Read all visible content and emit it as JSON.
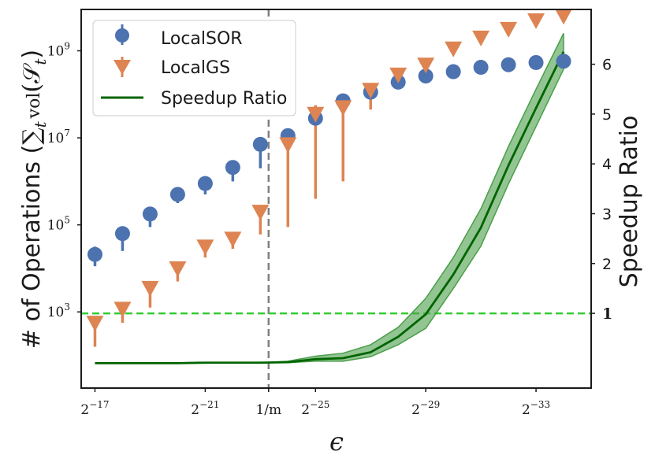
{
  "chart_data": {
    "type": "scatter",
    "xlabel": "ϵ",
    "ylabel_left_prefix": "# of Operations (",
    "ylabel_left_sum": "∑",
    "ylabel_left_sub_t": "t",
    "ylabel_left_vol": "vol",
    "ylabel_left_S": "(𝒮",
    "ylabel_left_close": ")",
    "ylabel_right": "Speedup Ratio",
    "x_axis": {
      "note": "log2 epsilon exponent, increasing to the right means smaller epsilon",
      "range": [
        -16.5,
        -35.0
      ],
      "ticks": [
        {
          "x": -17,
          "label": "2",
          "exp": "−17"
        },
        {
          "x": -21,
          "label": "2",
          "exp": "−21"
        },
        {
          "x": -23.3,
          "label": "1/m",
          "exp": ""
        },
        {
          "x": -25,
          "label": "2",
          "exp": "−25"
        },
        {
          "x": -29,
          "label": "2",
          "exp": "−29"
        },
        {
          "x": -33,
          "label": "2",
          "exp": "−33"
        }
      ]
    },
    "y_left": {
      "scale": "log10",
      "range": [
        1.25,
        9.95
      ],
      "ticks": [
        {
          "y": 3,
          "label": "10",
          "exp": "3"
        },
        {
          "y": 5,
          "label": "10",
          "exp": "5"
        },
        {
          "y": 7,
          "label": "10",
          "exp": "7"
        },
        {
          "y": 9,
          "label": "10",
          "exp": "9"
        }
      ]
    },
    "y_right": {
      "range": [
        -0.5,
        7.1
      ],
      "ticks": [
        {
          "y": 1,
          "label": "1",
          "bold": true
        },
        {
          "y": 2,
          "label": "2"
        },
        {
          "y": 3,
          "label": "3"
        },
        {
          "y": 4,
          "label": "4"
        },
        {
          "y": 5,
          "label": "5"
        },
        {
          "y": 6,
          "label": "6"
        }
      ]
    },
    "vline_x": -23.3,
    "hline_speedup": 1,
    "series": [
      {
        "name": "LocalSOR",
        "color": "#4c72b0",
        "marker": "circle",
        "points": [
          {
            "x": -17,
            "y": 4.32,
            "lo": 4.05,
            "hi": 4.5
          },
          {
            "x": -18,
            "y": 4.8,
            "lo": 4.4,
            "hi": 4.95
          },
          {
            "x": -19,
            "y": 5.25,
            "lo": 4.95,
            "hi": 5.35
          },
          {
            "x": -20,
            "y": 5.7,
            "lo": 5.5,
            "hi": 5.8
          },
          {
            "x": -21,
            "y": 5.95,
            "lo": 5.7,
            "hi": 6.05
          },
          {
            "x": -22,
            "y": 6.32,
            "lo": 6.0,
            "hi": 6.4
          },
          {
            "x": -23,
            "y": 6.85,
            "lo": 6.3,
            "hi": 6.95
          },
          {
            "x": -24,
            "y": 7.05,
            "lo": 6.9,
            "hi": 7.15
          },
          {
            "x": -25,
            "y": 7.45,
            "lo": 7.3,
            "hi": 7.55
          },
          {
            "x": -26,
            "y": 7.85,
            "lo": 7.7,
            "hi": 7.92
          },
          {
            "x": -27,
            "y": 8.05,
            "lo": 7.95,
            "hi": 8.15
          },
          {
            "x": -28,
            "y": 8.28,
            "lo": 8.2,
            "hi": 8.35
          },
          {
            "x": -29,
            "y": 8.42,
            "lo": 8.38,
            "hi": 8.48
          },
          {
            "x": -30,
            "y": 8.52,
            "lo": 8.48,
            "hi": 8.56
          },
          {
            "x": -31,
            "y": 8.62,
            "lo": 8.58,
            "hi": 8.66
          },
          {
            "x": -32,
            "y": 8.68,
            "lo": 8.64,
            "hi": 8.72
          },
          {
            "x": -33,
            "y": 8.73,
            "lo": 8.69,
            "hi": 8.77
          },
          {
            "x": -34,
            "y": 8.76,
            "lo": 8.72,
            "hi": 8.8
          }
        ]
      },
      {
        "name": "LocalGS",
        "color": "#dd8452",
        "marker": "triangle-down",
        "points": [
          {
            "x": -17,
            "y": 2.75,
            "lo": 2.2,
            "hi": 2.85
          },
          {
            "x": -18,
            "y": 3.07,
            "lo": 2.75,
            "hi": 3.1
          },
          {
            "x": -19,
            "y": 3.55,
            "lo": 3.1,
            "hi": 3.6
          },
          {
            "x": -20,
            "y": 4.0,
            "lo": 3.7,
            "hi": 4.05
          },
          {
            "x": -21,
            "y": 4.5,
            "lo": 4.25,
            "hi": 4.55
          },
          {
            "x": -22,
            "y": 4.68,
            "lo": 4.45,
            "hi": 4.72
          },
          {
            "x": -23,
            "y": 5.3,
            "lo": 4.78,
            "hi": 5.35
          },
          {
            "x": -24,
            "y": 6.85,
            "lo": 4.95,
            "hi": 7.0
          },
          {
            "x": -25,
            "y": 7.55,
            "lo": 5.6,
            "hi": 7.75
          },
          {
            "x": -26,
            "y": 7.7,
            "lo": 6.0,
            "hi": 7.8
          },
          {
            "x": -27,
            "y": 8.1,
            "lo": 7.65,
            "hi": 8.15
          },
          {
            "x": -28,
            "y": 8.45,
            "lo": 8.35,
            "hi": 8.5
          },
          {
            "x": -29,
            "y": 8.68,
            "lo": 8.6,
            "hi": 8.72
          },
          {
            "x": -30,
            "y": 9.05,
            "lo": 9.0,
            "hi": 9.1
          },
          {
            "x": -31,
            "y": 9.3,
            "lo": 9.25,
            "hi": 9.35
          },
          {
            "x": -32,
            "y": 9.5,
            "lo": 9.45,
            "hi": 9.55
          },
          {
            "x": -33,
            "y": 9.7,
            "lo": 9.65,
            "hi": 9.75
          },
          {
            "x": -34,
            "y": 9.8,
            "lo": 9.75,
            "hi": 9.85
          }
        ]
      },
      {
        "name": "Speedup Ratio",
        "color": "#006400",
        "band_color": "#4a9e4a",
        "marker": "line",
        "axis": "right",
        "points": [
          {
            "x": -17,
            "y": 0.0,
            "lo": 0.0,
            "hi": 0.0
          },
          {
            "x": -18,
            "y": 0.0,
            "lo": 0.0,
            "hi": 0.0
          },
          {
            "x": -19,
            "y": 0.0,
            "lo": 0.0,
            "hi": 0.0
          },
          {
            "x": -20,
            "y": 0.0,
            "lo": 0.0,
            "hi": 0.0
          },
          {
            "x": -21,
            "y": 0.01,
            "lo": 0.01,
            "hi": 0.01
          },
          {
            "x": -22,
            "y": 0.01,
            "lo": 0.01,
            "hi": 0.01
          },
          {
            "x": -23,
            "y": 0.01,
            "lo": 0.01,
            "hi": 0.01
          },
          {
            "x": -24,
            "y": 0.02,
            "lo": 0.01,
            "hi": 0.04
          },
          {
            "x": -25,
            "y": 0.08,
            "lo": 0.04,
            "hi": 0.14
          },
          {
            "x": -26,
            "y": 0.1,
            "lo": 0.04,
            "hi": 0.2
          },
          {
            "x": -27,
            "y": 0.22,
            "lo": 0.13,
            "hi": 0.37
          },
          {
            "x": -28,
            "y": 0.53,
            "lo": 0.37,
            "hi": 0.72
          },
          {
            "x": -29,
            "y": 0.98,
            "lo": 0.7,
            "hi": 1.3
          },
          {
            "x": -30,
            "y": 1.78,
            "lo": 1.5,
            "hi": 2.12
          },
          {
            "x": -31,
            "y": 2.72,
            "lo": 2.35,
            "hi": 3.1
          },
          {
            "x": -32,
            "y": 3.97,
            "lo": 3.6,
            "hi": 4.35
          },
          {
            "x": -33,
            "y": 5.12,
            "lo": 4.75,
            "hi": 5.5
          },
          {
            "x": -34,
            "y": 6.25,
            "lo": 5.9,
            "hi": 6.62
          }
        ]
      }
    ],
    "legend": {
      "placement": "top-left",
      "entries": [
        {
          "label": "LocalSOR",
          "marker": "circle",
          "color": "#4c72b0"
        },
        {
          "label": "LocalGS",
          "marker": "triangle-down",
          "color": "#dd8452"
        },
        {
          "label": "Speedup Ratio",
          "marker": "line",
          "color": "#006400"
        }
      ]
    },
    "styles": {
      "vline_color": "#808080",
      "hline_color": "#33cc33",
      "frame_color": "#1a1a1a"
    }
  }
}
